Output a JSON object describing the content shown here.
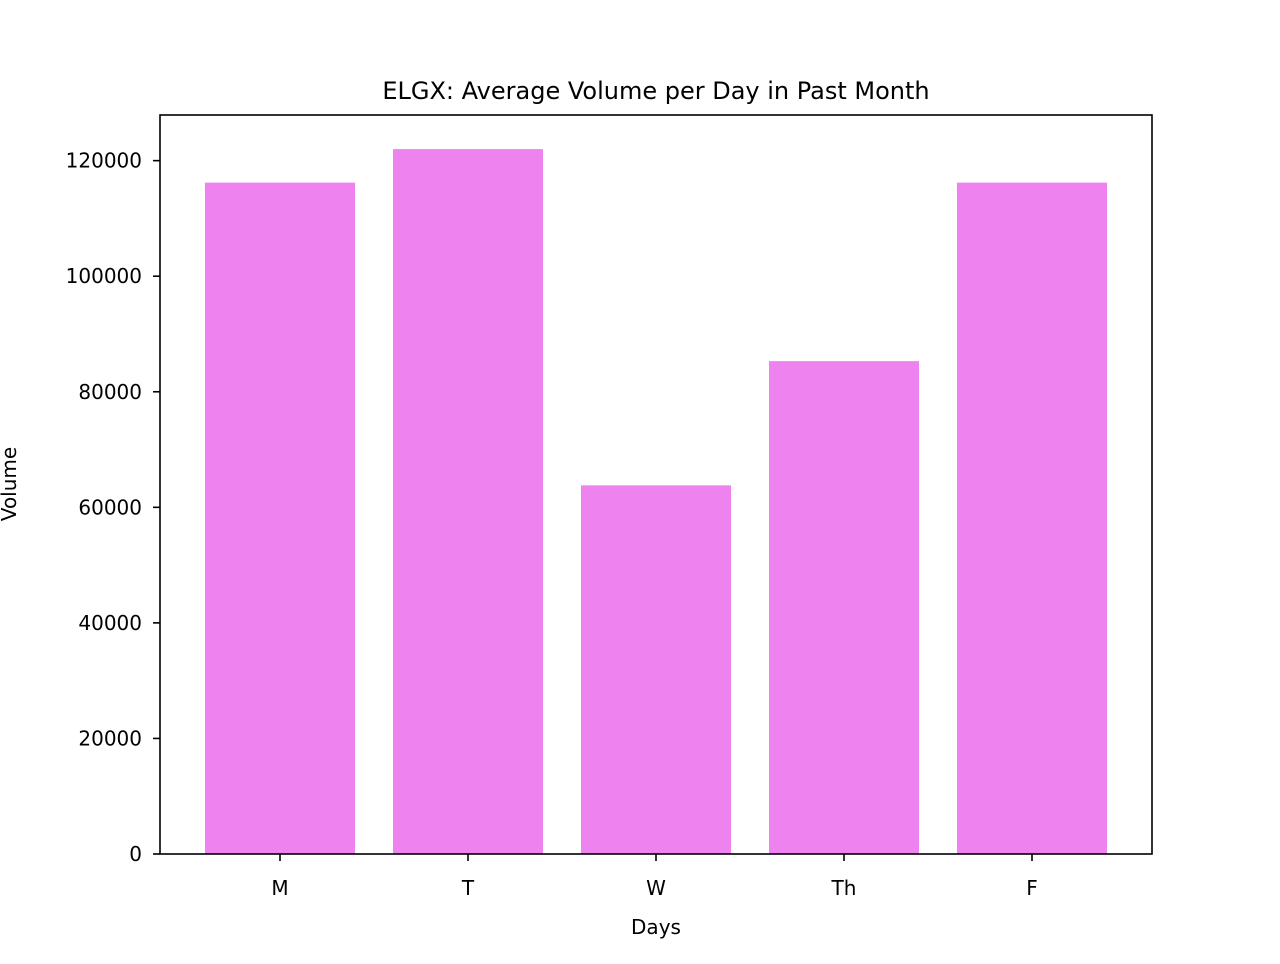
{
  "chart_data": {
    "type": "bar",
    "title": "ELGX: Average Volume per Day in Past Month",
    "xlabel": "Days",
    "ylabel": "Volume",
    "categories": [
      "M",
      "T",
      "W",
      "Th",
      "F"
    ],
    "values": [
      116200,
      122000,
      63800,
      85300,
      116200
    ],
    "ylim": [
      0,
      127900
    ],
    "yticks": [
      0,
      20000,
      40000,
      60000,
      80000,
      100000,
      120000
    ],
    "grid": false,
    "legend": "none",
    "bar_color": "#ee82ee"
  }
}
